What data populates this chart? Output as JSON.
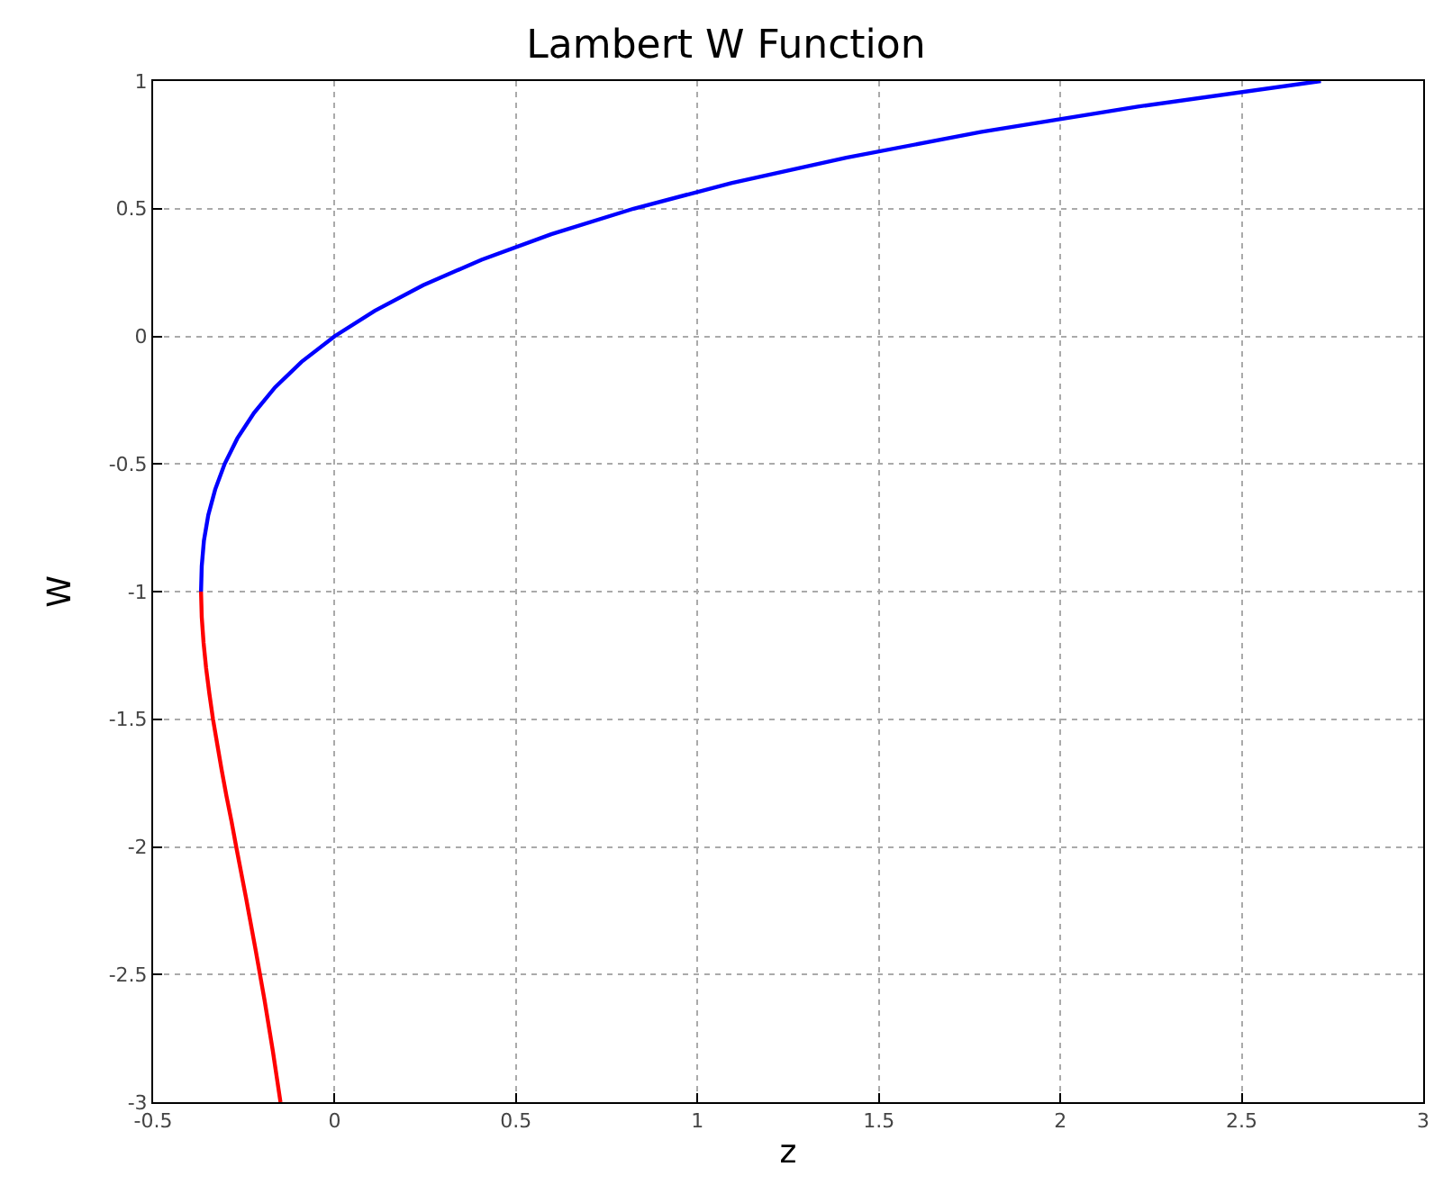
{
  "chart_data": {
    "type": "line",
    "title": "Lambert W Function",
    "xlabel": "z",
    "ylabel": "W",
    "xlim": [
      -0.5,
      3
    ],
    "xticks": [
      -0.5,
      0,
      0.5,
      1,
      1.5,
      2,
      2.5,
      3
    ],
    "ylim": [
      -3,
      1
    ],
    "yticks": [
      -3,
      -2.5,
      -2,
      -1.5,
      -1,
      -0.5,
      0,
      0.5,
      1
    ],
    "grid": true,
    "marker": "none",
    "line_style": "solid",
    "series": [
      {
        "color": "#0000ff",
        "x": [
          -0.368,
          -0.367,
          -0.366,
          -0.36,
          -0.348,
          -0.329,
          -0.303,
          -0.268,
          -0.222,
          -0.164,
          -0.091,
          0,
          0.111,
          0.244,
          0.405,
          0.597,
          0.824,
          1.093,
          1.41,
          1.78,
          2.214,
          2.718
        ],
        "values": [
          -1,
          -0.95,
          -0.9,
          -0.8,
          -0.7,
          -0.6,
          -0.5,
          -0.4,
          -0.3,
          -0.2,
          -0.1,
          0,
          0.1,
          0.2,
          0.3,
          0.4,
          0.5,
          0.6,
          0.7,
          0.8,
          0.9,
          1
        ]
      },
      {
        "color": "#ff0000",
        "x": [
          -0.368,
          -0.366,
          -0.361,
          -0.354,
          -0.345,
          -0.335,
          -0.323,
          -0.311,
          -0.298,
          -0.284,
          -0.271,
          -0.244,
          -0.218,
          -0.193,
          -0.17,
          -0.149
        ],
        "values": [
          -1,
          -1.1,
          -1.2,
          -1.3,
          -1.4,
          -1.5,
          -1.6,
          -1.7,
          -1.8,
          -1.9,
          -2,
          -2.2,
          -2.4,
          -2.6,
          -2.8,
          -3
        ]
      }
    ]
  }
}
